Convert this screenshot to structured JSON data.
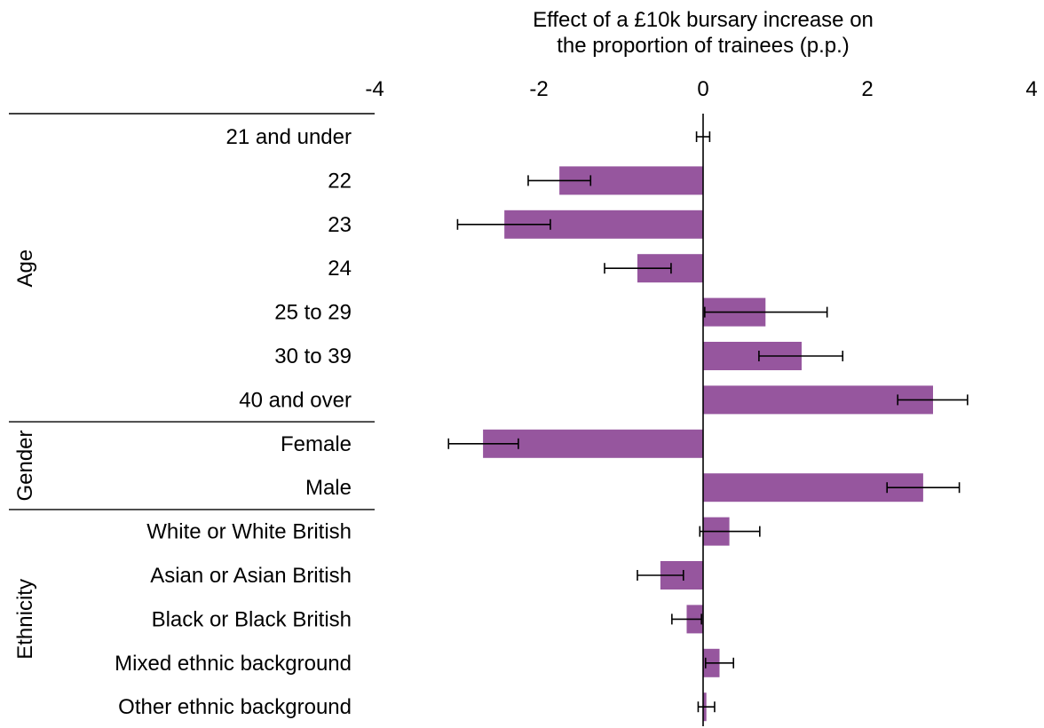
{
  "chart_data": {
    "type": "bar",
    "orientation": "horizontal",
    "title": "Effect of a £10k bursary increase on the proportion of trainees (p.p.)",
    "title_lines": [
      "Effect of a £10k bursary increase on",
      "the proportion of trainees (p.p.)"
    ],
    "xlim": [
      -4,
      4
    ],
    "x_ticks": [
      -4,
      -2,
      0,
      2,
      4
    ],
    "x_tick_labels": [
      "-4",
      "-2",
      "0",
      "2",
      "4"
    ],
    "x_axis_position": "top",
    "grid": false,
    "legend": "none",
    "bar_color": "#96569e",
    "groups": [
      {
        "name": "Age",
        "categories": [
          "21 and under",
          "22",
          "23",
          "24",
          "25 to 29",
          "30 to 39",
          "40 and over"
        ]
      },
      {
        "name": "Gender",
        "categories": [
          "Female",
          "Male"
        ]
      },
      {
        "name": "Ethnicity",
        "categories": [
          "White or White British",
          "Asian or Asian British",
          "Black or Black British",
          "Mixed ethnic background",
          "Other ethnic background"
        ]
      }
    ],
    "categories": [
      "21 and under",
      "22",
      "23",
      "24",
      "25 to 29",
      "30 to 39",
      "40 and over",
      "Female",
      "Male",
      "White or White British",
      "Asian or Asian British",
      "Black or Black British",
      "Mixed ethnic background",
      "Other ethnic background"
    ],
    "values": [
      0.0,
      -1.75,
      -2.42,
      -0.8,
      0.76,
      1.2,
      2.8,
      -2.68,
      2.68,
      0.32,
      -0.52,
      -0.2,
      0.2,
      0.04
    ],
    "error_low": [
      -0.08,
      -2.13,
      -2.99,
      -1.2,
      0.02,
      0.68,
      2.37,
      -3.1,
      2.24,
      -0.04,
      -0.8,
      -0.38,
      0.03,
      -0.06
    ],
    "error_high": [
      0.08,
      -1.37,
      -1.86,
      -0.39,
      1.51,
      1.7,
      3.22,
      -2.25,
      3.12,
      0.69,
      -0.24,
      -0.02,
      0.37,
      0.14
    ]
  }
}
